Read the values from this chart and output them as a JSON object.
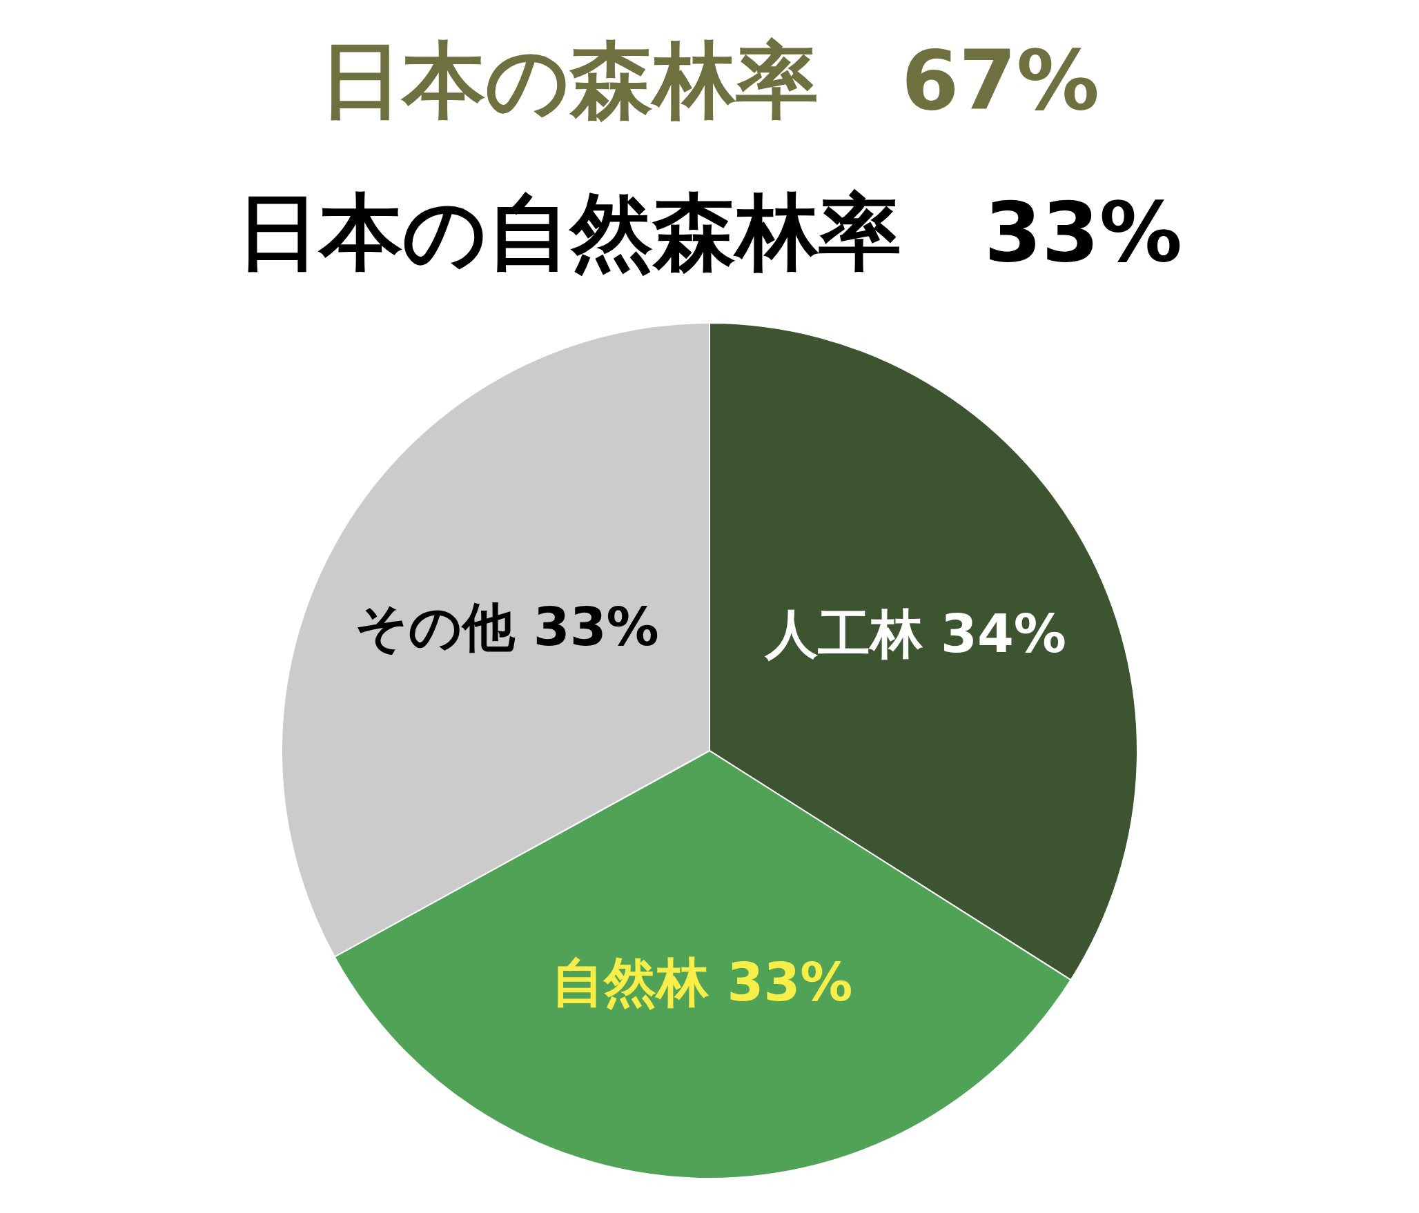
{
  "chart_data": {
    "type": "pie",
    "title": "日本の森林率　67%",
    "subtitle": "日本の自然森林率　33%",
    "categories": [
      "人工林",
      "自然林",
      "その他"
    ],
    "values": [
      34,
      33,
      33
    ],
    "colors": [
      "#3d5430",
      "#4fa256",
      "#cccbcc"
    ],
    "value_labels": [
      "34%",
      "33%",
      "33%"
    ],
    "legend": false
  }
}
